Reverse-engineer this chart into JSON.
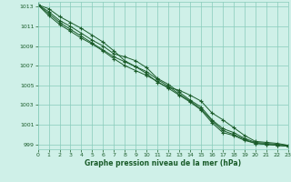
{
  "xlabel": "Graphe pression niveau de la mer (hPa)",
  "xlim": [
    0,
    23
  ],
  "ylim": [
    998.5,
    1013.5
  ],
  "yticks": [
    999,
    1001,
    1003,
    1005,
    1007,
    1009,
    1011,
    1013
  ],
  "xticks": [
    0,
    1,
    2,
    3,
    4,
    5,
    6,
    7,
    8,
    9,
    10,
    11,
    12,
    13,
    14,
    15,
    16,
    17,
    18,
    19,
    20,
    21,
    22,
    23
  ],
  "bg_color": "#cff0e8",
  "grid_color": "#88ccbb",
  "line_color": "#1a5c2a",
  "marker": "+",
  "series": [
    [
      1013.2,
      1012.8,
      1012.0,
      1011.4,
      1010.8,
      1010.1,
      1009.4,
      1008.5,
      1007.5,
      1006.9,
      1006.2,
      1005.3,
      1004.8,
      1004.5,
      1004.0,
      1003.4,
      1002.2,
      1001.5,
      1000.7,
      999.9,
      999.3,
      999.2,
      999.1,
      998.9
    ],
    [
      1013.2,
      1012.5,
      1011.6,
      1011.0,
      1010.3,
      1009.6,
      1009.0,
      1008.2,
      1007.9,
      1007.5,
      1006.8,
      1005.7,
      1005.1,
      1004.3,
      1003.5,
      1002.8,
      1001.5,
      1000.6,
      1000.2,
      999.6,
      999.2,
      999.1,
      999.0,
      998.9
    ],
    [
      1013.2,
      1012.3,
      1011.4,
      1010.7,
      1010.0,
      1009.3,
      1008.6,
      1007.9,
      1007.4,
      1006.9,
      1006.4,
      1005.6,
      1004.9,
      1004.1,
      1003.4,
      1002.6,
      1001.4,
      1000.4,
      1000.0,
      999.5,
      999.1,
      999.0,
      998.9,
      998.8
    ],
    [
      1013.2,
      1012.1,
      1011.2,
      1010.5,
      1009.8,
      1009.2,
      1008.5,
      1007.7,
      1007.0,
      1006.5,
      1006.0,
      1005.4,
      1004.7,
      1004.0,
      1003.3,
      1002.5,
      1001.2,
      1000.2,
      999.9,
      999.4,
      999.1,
      999.0,
      998.9,
      998.8
    ]
  ]
}
